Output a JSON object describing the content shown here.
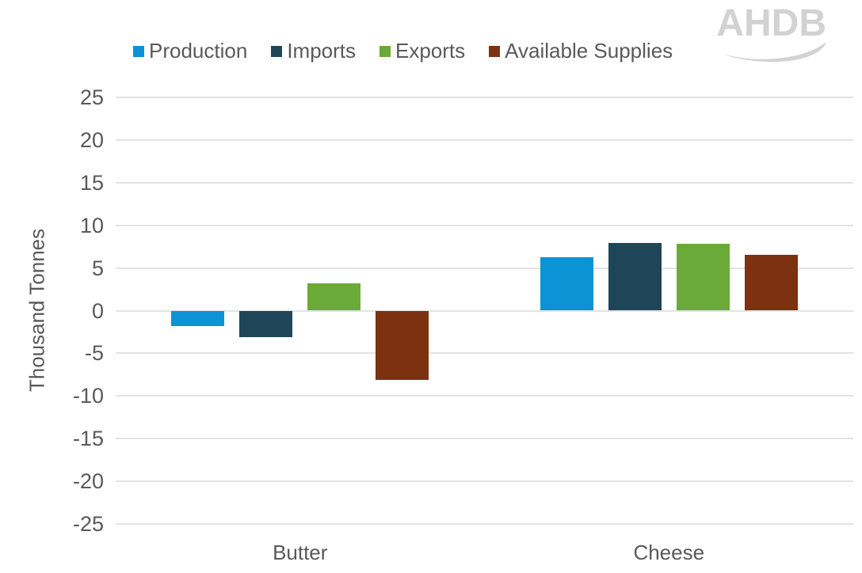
{
  "logo": {
    "text": "AHDB"
  },
  "chart_data": {
    "type": "bar",
    "title": "",
    "xlabel": "",
    "ylabel": "Thousand Tonnes",
    "categories": [
      "Butter",
      "Cheese"
    ],
    "series": [
      {
        "name": "Production",
        "color": "#0b93d5",
        "values": [
          -1.8,
          6.3
        ]
      },
      {
        "name": "Imports",
        "color": "#1f4558",
        "values": [
          -3.1,
          7.9
        ]
      },
      {
        "name": "Exports",
        "color": "#6ba938",
        "values": [
          3.2,
          7.8
        ]
      },
      {
        "name": "Available Supplies",
        "color": "#7c3110",
        "values": [
          -8.1,
          6.5
        ]
      }
    ],
    "ylim": [
      -25,
      25
    ],
    "ytick_step": 5,
    "yticks": [
      25,
      20,
      15,
      10,
      5,
      0,
      -5,
      -10,
      -15,
      -20,
      -25
    ],
    "grid": true,
    "legend_position": "top"
  },
  "colors": {
    "text": "#595959",
    "gridline": "#e3e3e3",
    "logo": "#d2d2d2",
    "background": "#ffffff"
  }
}
